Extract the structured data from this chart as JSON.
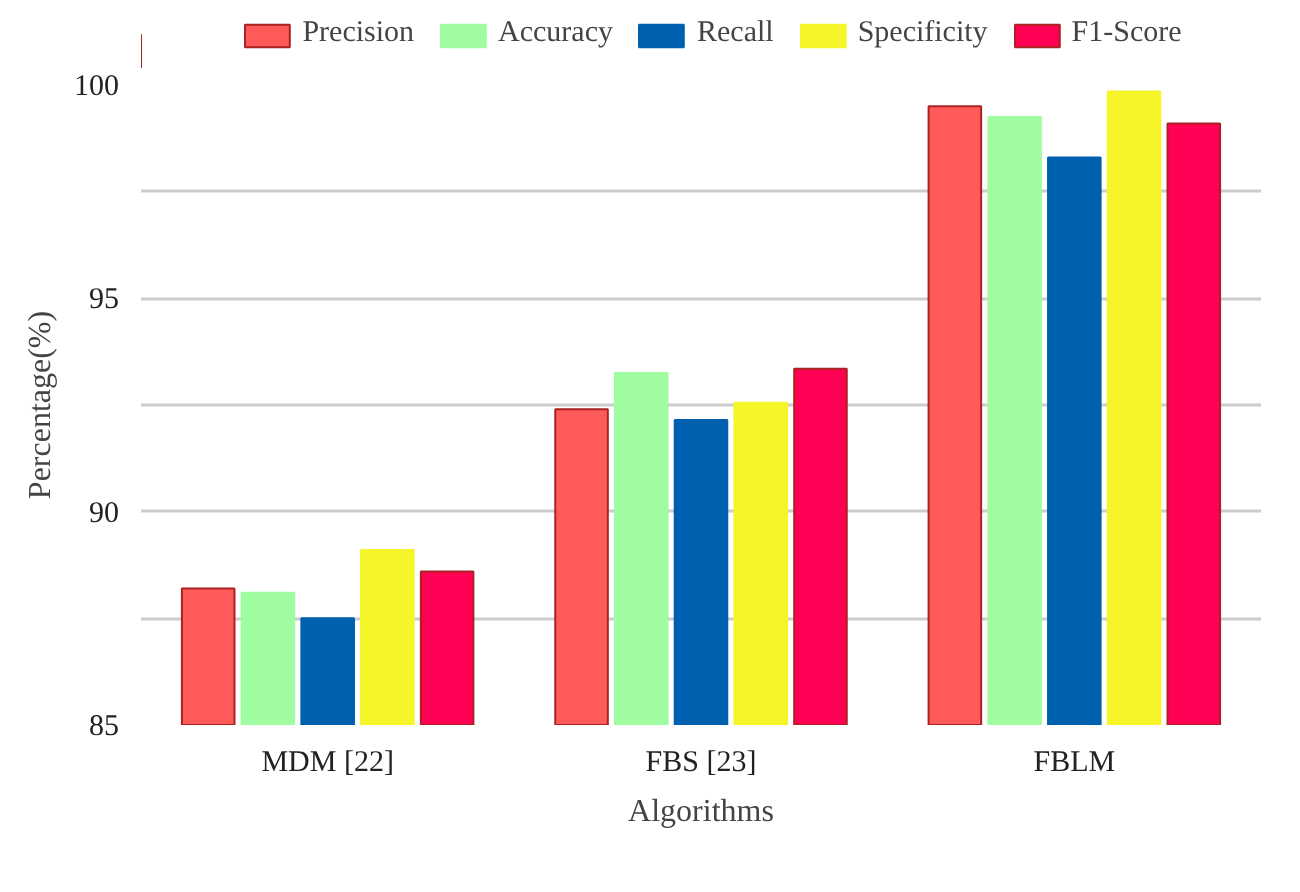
{
  "chart_data": {
    "type": "bar",
    "xlabel": "Algorithms",
    "ylabel": "Percentage(%)",
    "categories": [
      "MDM [22]",
      "FBS [23]",
      "FBLM"
    ],
    "series": [
      {
        "name": "Precision",
        "color": "#ff5a5a",
        "values": [
          88.2,
          92.4,
          99.5
        ]
      },
      {
        "name": "Accuracy",
        "color": "#a0fca0",
        "values": [
          88.1,
          93.25,
          99.25
        ]
      },
      {
        "name": "Recall",
        "color": "#0060b0",
        "values": [
          87.5,
          92.15,
          98.3
        ]
      },
      {
        "name": "Specificity",
        "color": "#f5f52a",
        "values": [
          89.1,
          92.55,
          99.85
        ]
      },
      {
        "name": "F1-Score",
        "color": "#ff0055",
        "values": [
          88.6,
          93.35,
          99.1
        ]
      }
    ],
    "ylim": [
      85,
      100
    ],
    "yticks": [
      85,
      {
        "value": 87.5,
        "label": null
      },
      90,
      {
        "value": 92.5,
        "label": null
      },
      95,
      {
        "value": 97.5,
        "label": null
      },
      100
    ],
    "grid": "y",
    "legend": "top"
  }
}
